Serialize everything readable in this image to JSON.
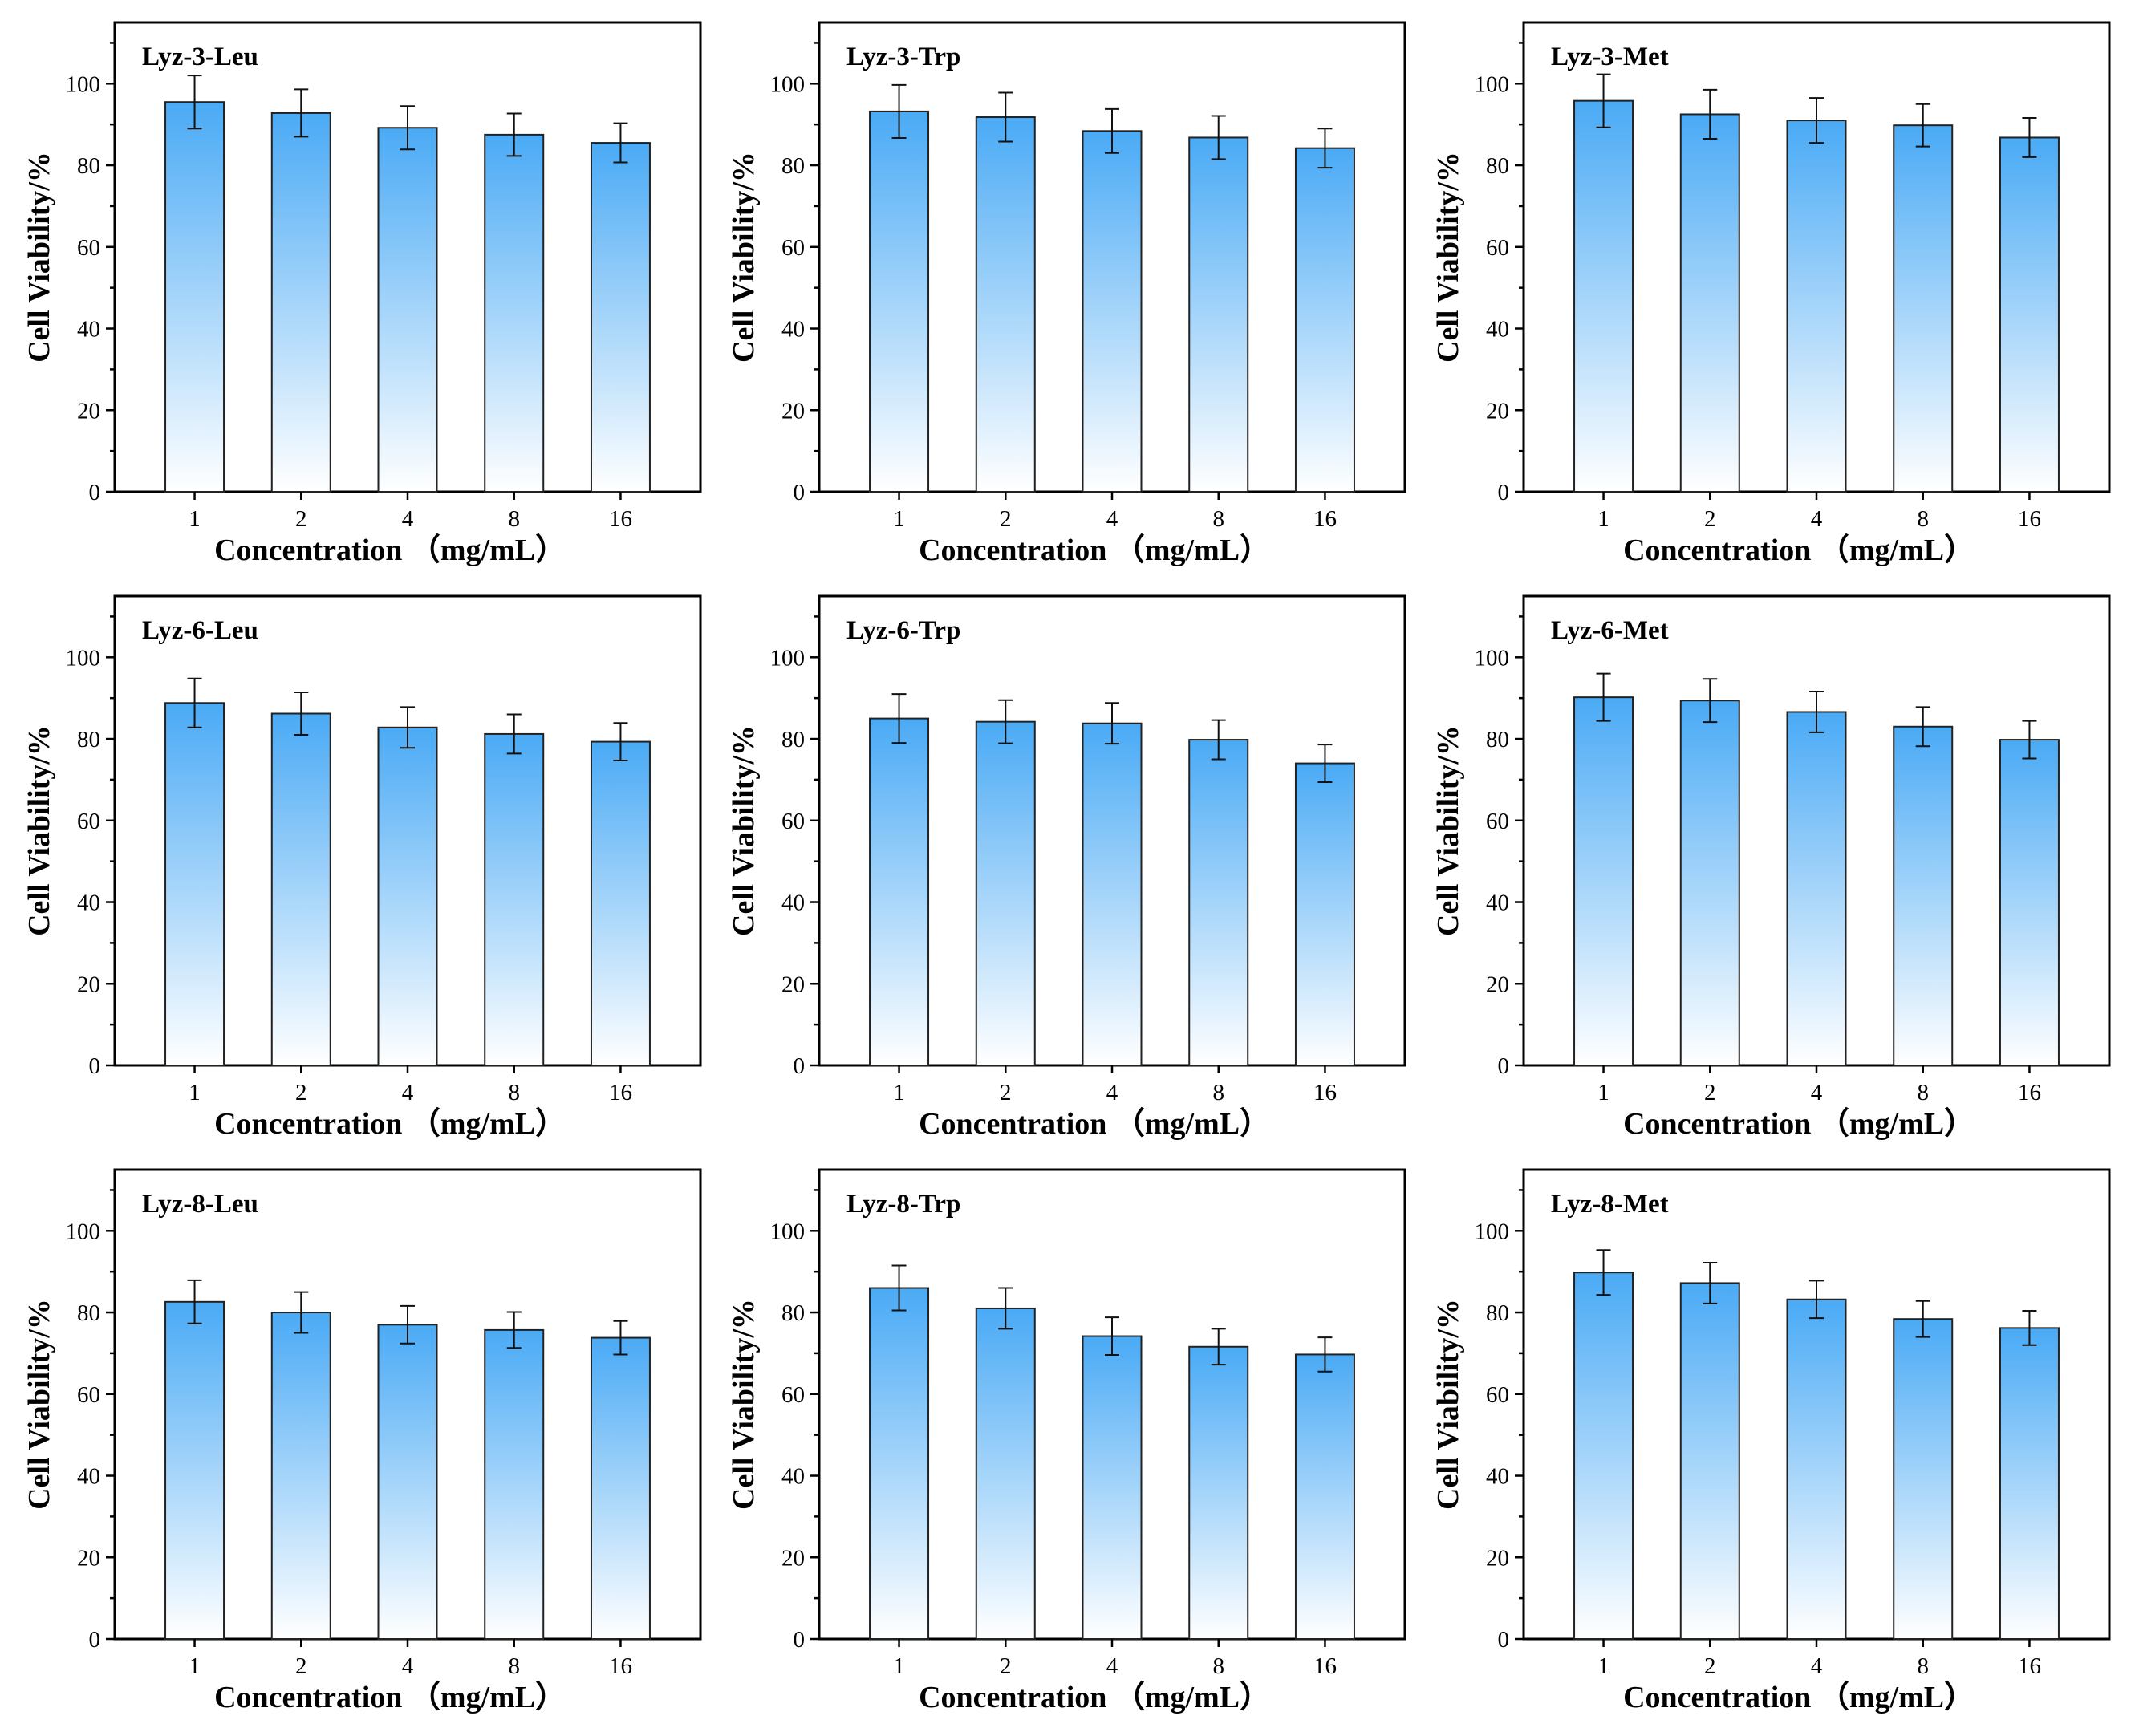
{
  "figure": {
    "bar_gradient": {
      "top": "#4aaaf5",
      "bottom": "#ffffff"
    },
    "bar_stroke": "#222222",
    "axis_color": "#000000"
  },
  "chart_data": [
    {
      "type": "bar",
      "title": "Lyz-3-Leu",
      "categories": [
        "1",
        "2",
        "4",
        "8",
        "16"
      ],
      "values": [
        95.5,
        92.8,
        89.2,
        87.5,
        85.5
      ],
      "errors": [
        6.5,
        5.8,
        5.3,
        5.2,
        4.8
      ],
      "xlabel": "Concentration （mg/mL）",
      "ylabel": "Cell Viability/%",
      "ylim": [
        0,
        115
      ],
      "yticks": [
        "0",
        "20",
        "40",
        "60",
        "80",
        "100"
      ]
    },
    {
      "type": "bar",
      "title": "Lyz-3-Trp",
      "categories": [
        "1",
        "2",
        "4",
        "8",
        "16"
      ],
      "values": [
        93.2,
        91.8,
        88.4,
        86.8,
        84.2
      ],
      "errors": [
        6.5,
        6.0,
        5.4,
        5.3,
        4.8
      ],
      "xlabel": "Concentration （mg/mL）",
      "ylabel": "Cell Viability/%",
      "ylim": [
        0,
        115
      ],
      "yticks": [
        "0",
        "20",
        "40",
        "60",
        "80",
        "100"
      ]
    },
    {
      "type": "bar",
      "title": "Lyz-3-Met",
      "categories": [
        "1",
        "2",
        "4",
        "8",
        "16"
      ],
      "values": [
        95.8,
        92.5,
        91.0,
        89.8,
        86.8
      ],
      "errors": [
        6.5,
        6.0,
        5.5,
        5.2,
        4.8
      ],
      "xlabel": "Concentration （mg/mL）",
      "ylabel": "Cell Viability/%",
      "ylim": [
        0,
        115
      ],
      "yticks": [
        "0",
        "20",
        "40",
        "60",
        "80",
        "100"
      ]
    },
    {
      "type": "bar",
      "title": "Lyz-6-Leu",
      "categories": [
        "1",
        "2",
        "4",
        "8",
        "16"
      ],
      "values": [
        88.8,
        86.2,
        82.8,
        81.2,
        79.3
      ],
      "errors": [
        6.0,
        5.2,
        5.0,
        4.8,
        4.6
      ],
      "xlabel": "Concentration （mg/mL）",
      "ylabel": "Cell Viability/%",
      "ylim": [
        0,
        115
      ],
      "yticks": [
        "0",
        "20",
        "40",
        "60",
        "80",
        "100"
      ]
    },
    {
      "type": "bar",
      "title": "Lyz-6-Trp",
      "categories": [
        "1",
        "2",
        "4",
        "8",
        "16"
      ],
      "values": [
        85.0,
        84.2,
        83.8,
        79.8,
        74.0
      ],
      "errors": [
        6.0,
        5.3,
        5.0,
        4.8,
        4.6
      ],
      "xlabel": "Concentration （mg/mL）",
      "ylabel": "Cell Viability/%",
      "ylim": [
        0,
        115
      ],
      "yticks": [
        "0",
        "20",
        "40",
        "60",
        "80",
        "100"
      ]
    },
    {
      "type": "bar",
      "title": "Lyz-6-Met",
      "categories": [
        "1",
        "2",
        "4",
        "8",
        "16"
      ],
      "values": [
        90.2,
        89.4,
        86.6,
        83.0,
        79.8
      ],
      "errors": [
        5.8,
        5.3,
        5.0,
        4.8,
        4.6
      ],
      "xlabel": "Concentration （mg/mL）",
      "ylabel": "Cell Viability/%",
      "ylim": [
        0,
        115
      ],
      "yticks": [
        "0",
        "20",
        "40",
        "60",
        "80",
        "100"
      ]
    },
    {
      "type": "bar",
      "title": "Lyz-8-Leu",
      "categories": [
        "1",
        "2",
        "4",
        "8",
        "16"
      ],
      "values": [
        82.6,
        80.0,
        77.0,
        75.7,
        73.8
      ],
      "errors": [
        5.3,
        5.0,
        4.6,
        4.4,
        4.1
      ],
      "xlabel": "Concentration （mg/mL）",
      "ylabel": "Cell Viability/%",
      "ylim": [
        0,
        115
      ],
      "yticks": [
        "0",
        "20",
        "40",
        "60",
        "80",
        "100"
      ]
    },
    {
      "type": "bar",
      "title": "Lyz-8-Trp",
      "categories": [
        "1",
        "2",
        "4",
        "8",
        "16"
      ],
      "values": [
        86.0,
        81.0,
        74.2,
        71.6,
        69.7
      ],
      "errors": [
        5.5,
        5.0,
        4.6,
        4.4,
        4.2
      ],
      "xlabel": "Concentration （mg/mL）",
      "ylabel": "Cell Viability/%",
      "ylim": [
        0,
        115
      ],
      "yticks": [
        "0",
        "20",
        "40",
        "60",
        "80",
        "100"
      ]
    },
    {
      "type": "bar",
      "title": "Lyz-8-Met",
      "categories": [
        "1",
        "2",
        "4",
        "8",
        "16"
      ],
      "values": [
        89.8,
        87.2,
        83.2,
        78.4,
        76.2
      ],
      "errors": [
        5.5,
        5.0,
        4.6,
        4.4,
        4.2
      ],
      "xlabel": "Concentration （mg/mL）",
      "ylabel": "Cell Viability/%",
      "ylim": [
        0,
        115
      ],
      "yticks": [
        "0",
        "20",
        "40",
        "60",
        "80",
        "100"
      ]
    }
  ]
}
